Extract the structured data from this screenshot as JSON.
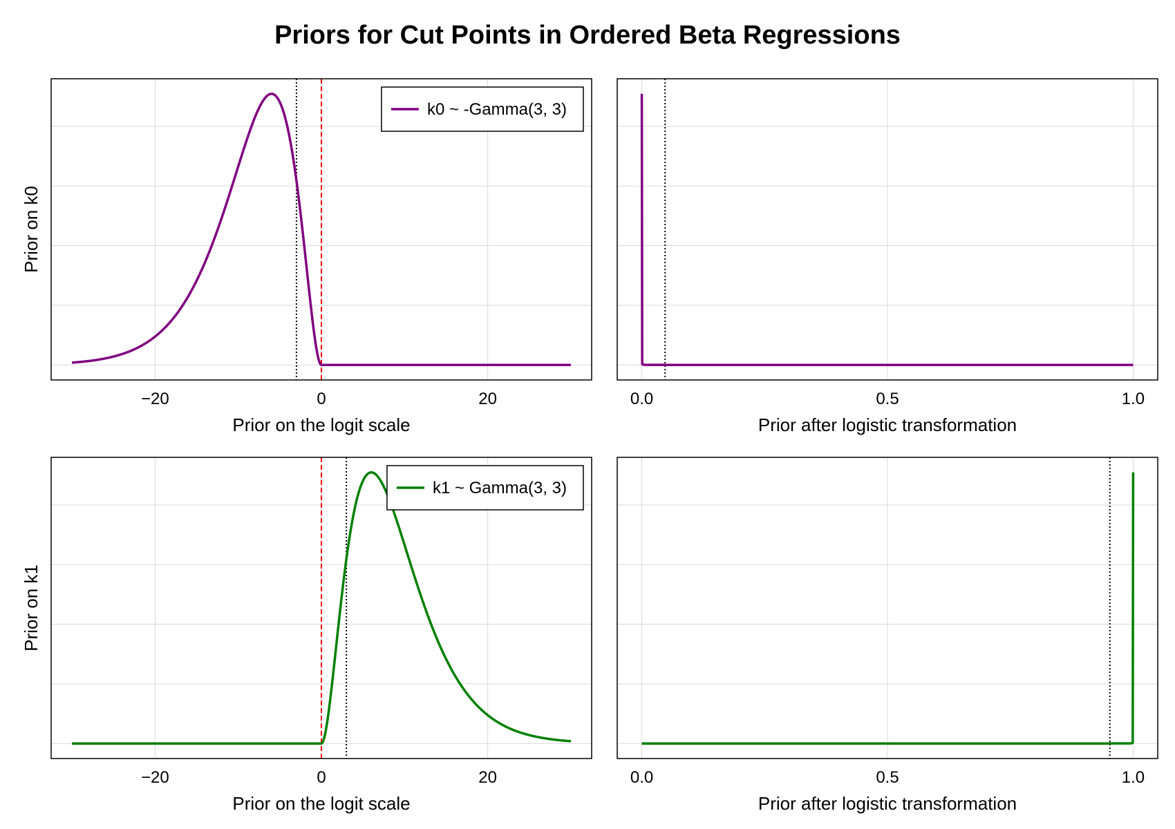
{
  "title": "Priors for Cut Points in Ordered Beta Regressions",
  "colors": {
    "k0_curve": "#800080",
    "k1_curve": "#008000",
    "zero_line": "#ff0000",
    "marker_line": "#000000",
    "grid": "#d9d9d9"
  },
  "chart_data": [
    {
      "id": "k0-logit",
      "type": "line",
      "xlabel": "Prior on the logit scale",
      "ylabel": "Prior on k0",
      "xlim": [
        -32.5,
        32.5
      ],
      "xticks": [
        -20,
        0,
        20
      ],
      "xtick_labels": [
        "−20",
        "0",
        "20"
      ],
      "grid": true,
      "legend": {
        "label": "k0 ~ -Gamma(3, 3)",
        "placement": "top-right"
      },
      "series": [
        {
          "name": "k0 ~ -Gamma(3, 3)",
          "color": "#800080",
          "distribution": "negative-gamma",
          "shape": 3,
          "scale": 3,
          "x_range": [
            -30,
            30
          ]
        }
      ],
      "vlines": [
        {
          "x": 0,
          "style": "dashed",
          "color": "#ff0000"
        },
        {
          "x": -3,
          "style": "dotted",
          "color": "#000000"
        }
      ]
    },
    {
      "id": "k0-probability",
      "type": "line",
      "xlabel": "Prior after logistic transformation",
      "ylabel": "",
      "xlim": [
        -0.05,
        1.05
      ],
      "xticks": [
        0.0,
        0.5,
        1.0
      ],
      "xtick_labels": [
        "0.0",
        "0.5",
        "1.0"
      ],
      "grid": true,
      "series": [
        {
          "name": "",
          "color": "#800080",
          "distribution": "negative-gamma-logistic",
          "shape": 3,
          "scale": 3,
          "x_range": [
            0,
            1
          ]
        }
      ],
      "vlines": [
        {
          "x": 0.0474,
          "style": "dotted",
          "color": "#000000"
        }
      ]
    },
    {
      "id": "k1-logit",
      "type": "line",
      "xlabel": "Prior on the logit scale",
      "ylabel": "Prior on k1",
      "xlim": [
        -32.5,
        32.5
      ],
      "xticks": [
        -20,
        0,
        20
      ],
      "xtick_labels": [
        "−20",
        "0",
        "20"
      ],
      "grid": true,
      "legend": {
        "label": "k1 ~ Gamma(3, 3)",
        "placement": "top-right"
      },
      "series": [
        {
          "name": "k1 ~ Gamma(3, 3)",
          "color": "#008000",
          "distribution": "gamma",
          "shape": 3,
          "scale": 3,
          "x_range": [
            -30,
            30
          ]
        }
      ],
      "vlines": [
        {
          "x": 0,
          "style": "dashed",
          "color": "#ff0000"
        },
        {
          "x": 3,
          "style": "dotted",
          "color": "#000000"
        }
      ]
    },
    {
      "id": "k1-probability",
      "type": "line",
      "xlabel": "Prior after logistic transformation",
      "ylabel": "",
      "xlim": [
        -0.05,
        1.05
      ],
      "xticks": [
        0.0,
        0.5,
        1.0
      ],
      "xtick_labels": [
        "0.0",
        "0.5",
        "1.0"
      ],
      "grid": true,
      "series": [
        {
          "name": "",
          "color": "#008000",
          "distribution": "gamma-logistic",
          "shape": 3,
          "scale": 3,
          "x_range": [
            0,
            1
          ]
        }
      ],
      "vlines": [
        {
          "x": 0.9526,
          "style": "dotted",
          "color": "#000000"
        }
      ]
    }
  ]
}
